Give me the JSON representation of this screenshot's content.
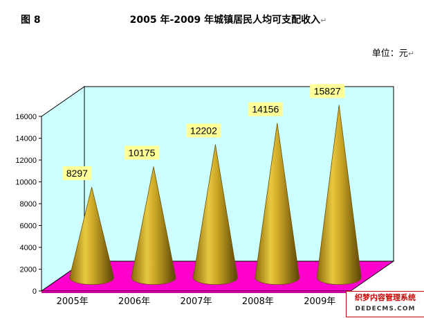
{
  "header": {
    "figure_label": "图 8",
    "title": "2005 年-2009 年城镇居民人均可支配收入",
    "title_mark": "↵",
    "unit": "单位：元",
    "unit_mark": "↵"
  },
  "watermark": {
    "cn": "织梦内容管理系统",
    "en": "DEDECMS.COM"
  },
  "colors": {
    "back_wall": "#ccffff",
    "floor": "#ff00cc",
    "floor_side": "#cc0099",
    "cone": "#c8a424",
    "cone_dark": "#6b5208",
    "label_bg": "#ffff99"
  },
  "chart_data": {
    "type": "bar",
    "shape": "cone",
    "categories": [
      "2005年",
      "2006年",
      "2007年",
      "2008年",
      "2009年"
    ],
    "values": [
      8297,
      10175,
      12202,
      14156,
      15827
    ],
    "title": "2005 年-2009 年城镇居民人均可支配收入",
    "xlabel": "",
    "ylabel": "",
    "ylim": [
      0,
      16000
    ],
    "yticks": [
      0,
      2000,
      4000,
      6000,
      8000,
      10000,
      12000,
      14000,
      16000
    ],
    "grid": false,
    "legend": "none"
  }
}
